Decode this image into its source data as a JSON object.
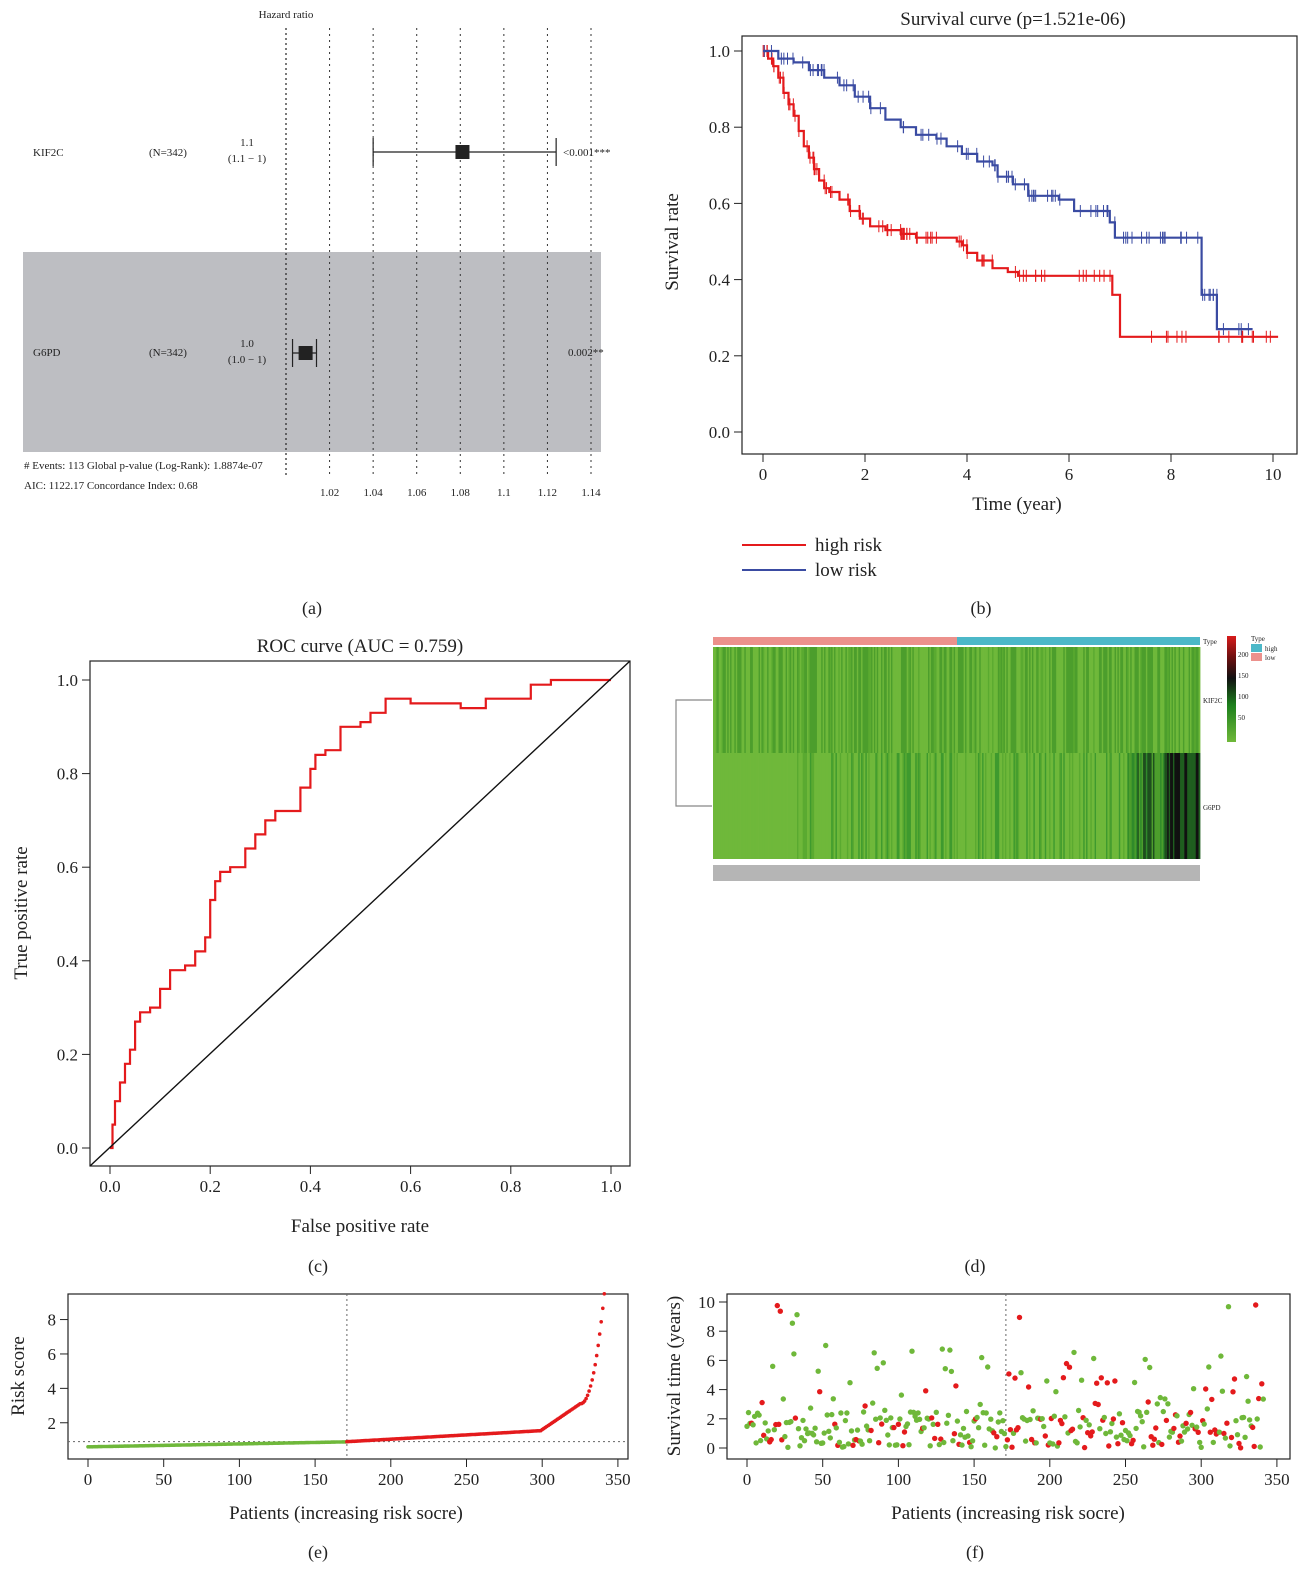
{
  "colors": {
    "high": "#e41a1c",
    "low": "#3a4ba2",
    "green": "#6fb83a",
    "forest_shade": "#bdbec2",
    "type_high": "#4cb8c8",
    "type_low": "#ec918c"
  },
  "panel_labels": {
    "a": "(a)",
    "b": "(b)",
    "c": "(c)",
    "d": "(d)",
    "e": "(e)",
    "f": "(f)"
  },
  "forest": {
    "header": "Hazard ratio",
    "rows": [
      {
        "gene": "KIF2C",
        "n": "(N=342)",
        "hr": "1.1",
        "ci": "(1.1 − 1)",
        "p": "<0.001***",
        "est": 1.081,
        "lo": 1.04,
        "hi": 1.124
      },
      {
        "gene": "G6PD",
        "n": "(N=342)",
        "hr": "1.0",
        "ci": "(1.0 − 1)",
        "p": "0.002**",
        "est": 1.009,
        "lo": 1.003,
        "hi": 1.014
      }
    ],
    "footer1": "# Events: 113 Global p-value (Log-Rank): 1.8874e-07",
    "footer2": "AIC: 1122.17 Concordance Index: 0.68",
    "ref_line": 1.0,
    "ticks": [
      "1.02",
      "1.04",
      "1.06",
      "1.08",
      "1.1",
      "1.12",
      "1.14"
    ],
    "tick_values": [
      1.02,
      1.04,
      1.06,
      1.08,
      1.1,
      1.12,
      1.14
    ]
  },
  "chart_data": [
    {
      "panel": "b",
      "type": "line",
      "title": "Survival curve (p=1.521e-06)",
      "xlabel": "Time (year)",
      "ylabel": "Survival rate",
      "xlim": [
        0,
        10
      ],
      "ylim": [
        0,
        1
      ],
      "xticks": [
        "0",
        "2",
        "4",
        "6",
        "8",
        "10"
      ],
      "yticks": [
        "0.0",
        "0.2",
        "0.4",
        "0.6",
        "0.8",
        "1.0"
      ],
      "legend": [
        "high risk",
        "low risk"
      ],
      "legend_position": "below",
      "series": [
        {
          "name": "high risk",
          "x": [
            0,
            0.1,
            0.2,
            0.3,
            0.4,
            0.5,
            0.6,
            0.7,
            0.8,
            0.9,
            1.0,
            1.1,
            1.2,
            1.3,
            1.5,
            1.7,
            1.9,
            2.1,
            2.4,
            2.7,
            3.0,
            3.3,
            3.6,
            3.8,
            3.9,
            4.0,
            4.2,
            4.5,
            4.8,
            5.0,
            6.0,
            6.8,
            6.85,
            7.0,
            8.0,
            10.1
          ],
          "y": [
            1.0,
            0.98,
            0.96,
            0.93,
            0.89,
            0.86,
            0.83,
            0.79,
            0.75,
            0.72,
            0.69,
            0.66,
            0.64,
            0.63,
            0.61,
            0.58,
            0.56,
            0.54,
            0.53,
            0.52,
            0.51,
            0.51,
            0.51,
            0.5,
            0.49,
            0.47,
            0.45,
            0.43,
            0.42,
            0.41,
            0.41,
            0.41,
            0.36,
            0.25,
            0.25,
            0.25
          ]
        },
        {
          "name": "low risk",
          "x": [
            0,
            0.3,
            0.6,
            0.9,
            1.2,
            1.5,
            1.8,
            2.1,
            2.4,
            2.7,
            3.0,
            3.4,
            3.6,
            3.9,
            4.2,
            4.5,
            4.6,
            4.9,
            5.2,
            5.8,
            6.1,
            6.8,
            6.9,
            8.6,
            8.9,
            9.6
          ],
          "y": [
            1.0,
            0.98,
            0.97,
            0.95,
            0.93,
            0.91,
            0.88,
            0.85,
            0.82,
            0.8,
            0.78,
            0.77,
            0.75,
            0.73,
            0.71,
            0.7,
            0.67,
            0.65,
            0.62,
            0.61,
            0.58,
            0.55,
            0.51,
            0.36,
            0.27,
            0.27
          ]
        }
      ]
    },
    {
      "panel": "c",
      "type": "line",
      "title": "ROC curve (AUC = 0.759)",
      "xlabel": "False positive rate",
      "ylabel": "True positive rate",
      "xlim": [
        0,
        1
      ],
      "ylim": [
        0,
        1
      ],
      "xticks": [
        "0.0",
        "0.2",
        "0.4",
        "0.6",
        "0.8",
        "1.0"
      ],
      "yticks": [
        "0.0",
        "0.2",
        "0.4",
        "0.6",
        "0.8",
        "1.0"
      ],
      "series": [
        {
          "name": "",
          "x": [
            0,
            0.005,
            0.01,
            0.02,
            0.03,
            0.04,
            0.05,
            0.06,
            0.08,
            0.1,
            0.12,
            0.15,
            0.17,
            0.19,
            0.2,
            0.21,
            0.22,
            0.24,
            0.27,
            0.29,
            0.31,
            0.33,
            0.35,
            0.38,
            0.4,
            0.41,
            0.43,
            0.46,
            0.48,
            0.5,
            0.52,
            0.55,
            0.6,
            0.7,
            0.75,
            0.8,
            0.84,
            0.88,
            0.92,
            1.0
          ],
          "y": [
            0,
            0.05,
            0.1,
            0.14,
            0.18,
            0.21,
            0.27,
            0.29,
            0.3,
            0.34,
            0.38,
            0.39,
            0.42,
            0.45,
            0.53,
            0.57,
            0.59,
            0.6,
            0.64,
            0.67,
            0.7,
            0.72,
            0.72,
            0.77,
            0.81,
            0.84,
            0.85,
            0.9,
            0.9,
            0.91,
            0.93,
            0.96,
            0.95,
            0.94,
            0.96,
            0.96,
            0.99,
            1.0,
            1.0,
            1.0
          ]
        },
        {
          "name": "",
          "x": [
            0,
            1
          ],
          "y": [
            0,
            1
          ]
        }
      ]
    },
    {
      "panel": "d",
      "type": "heatmap",
      "rows": [
        "KIF2C",
        "G6PD"
      ],
      "annotation_label": "Type",
      "legend_title": "Type",
      "legend_items": [
        "high",
        "low"
      ],
      "scale_ticks": [
        "200",
        "150",
        "100",
        "50"
      ],
      "scale_values": [
        200,
        150,
        100,
        50
      ],
      "low_fraction": 0.5
    },
    {
      "panel": "e",
      "type": "scatter",
      "xlabel": "Patients (increasing risk socre)",
      "ylabel": "Risk score",
      "xlim": [
        0,
        350
      ],
      "ylim": [
        0.3,
        9.7
      ],
      "xticks": [
        "0",
        "50",
        "100",
        "150",
        "200",
        "250",
        "300",
        "350"
      ],
      "yticks": [
        "2",
        "4",
        "6",
        "8"
      ],
      "cutoff_patient": 171,
      "cutoff_score": 0.9,
      "n_patients": 342
    },
    {
      "panel": "f",
      "type": "scatter",
      "xlabel": "Patients (increasing risk socre)",
      "ylabel": "Survival time (years)",
      "xlim": [
        0,
        350
      ],
      "ylim": [
        0,
        10
      ],
      "xticks": [
        "0",
        "50",
        "100",
        "150",
        "200",
        "250",
        "300",
        "350"
      ],
      "yticks": [
        "0",
        "2",
        "4",
        "6",
        "8",
        "10"
      ],
      "cutoff_patient": 171,
      "n_patients": 342
    }
  ]
}
